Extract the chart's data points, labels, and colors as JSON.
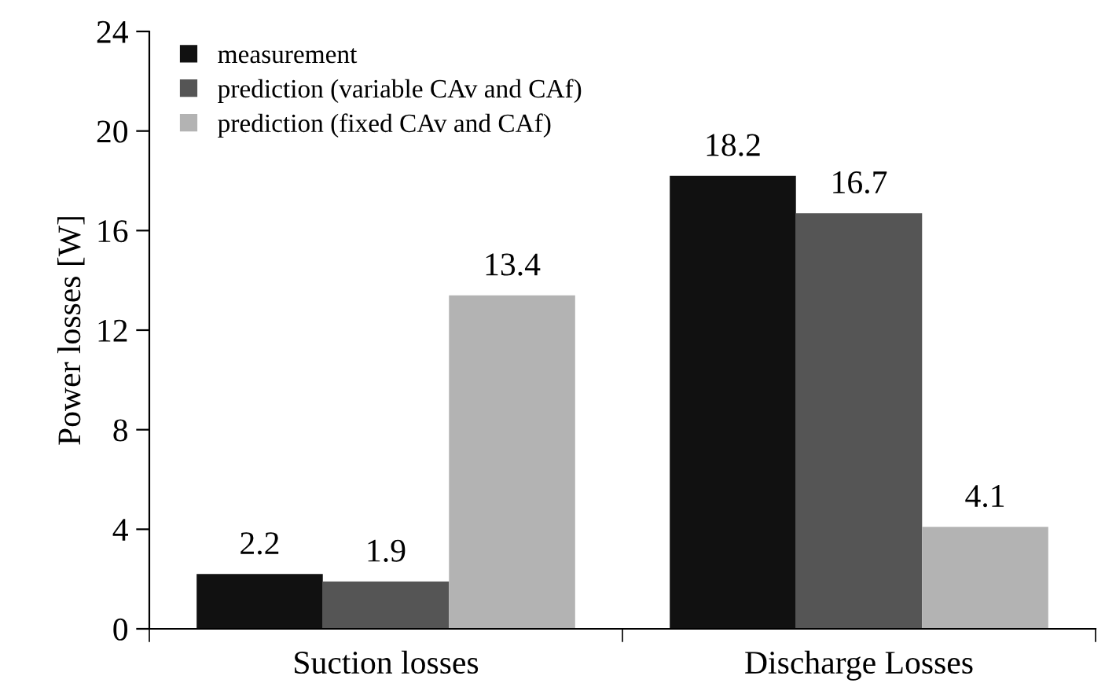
{
  "chart_data": {
    "type": "bar",
    "ylabel": "Power losses [W]",
    "categories": [
      "Suction losses",
      "Discharge Losses"
    ],
    "series": [
      {
        "name": "measurement",
        "color": "#111111",
        "values": [
          2.2,
          18.2
        ]
      },
      {
        "name": "prediction (variable CAv and CAf)",
        "color": "#555555",
        "values": [
          1.9,
          16.7
        ]
      },
      {
        "name": "prediction (fixed CAv and CAf)",
        "color": "#b3b3b3",
        "values": [
          13.4,
          4.1
        ]
      }
    ],
    "ylim": [
      0,
      24
    ],
    "yticks": [
      0,
      4,
      8,
      12,
      16,
      20,
      24
    ],
    "data_labels": true,
    "legend": "top left",
    "grid": false
  }
}
